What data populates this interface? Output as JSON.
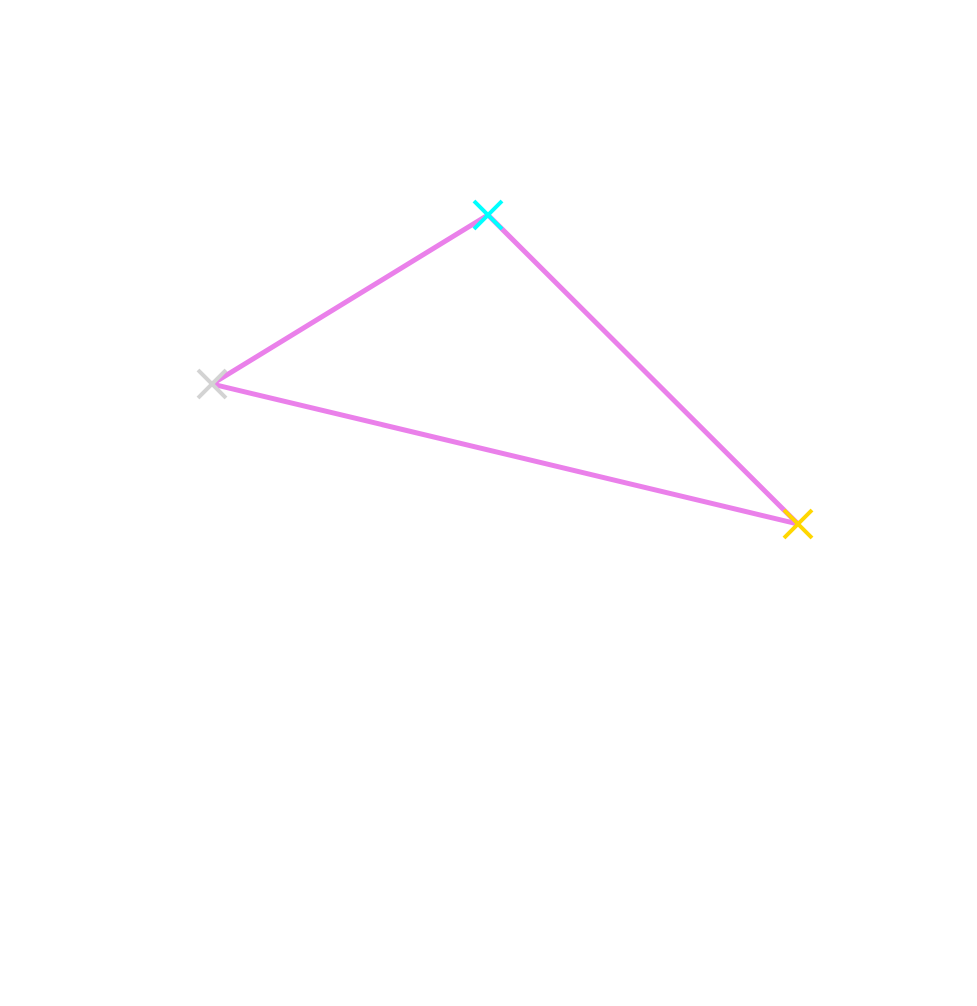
{
  "diagram": {
    "edge_color": "#ea80ea",
    "vertices": [
      {
        "id": "left",
        "color": "#d3d3d3",
        "label": ""
      },
      {
        "id": "top",
        "color": "#00ffff",
        "label": ""
      },
      {
        "id": "right",
        "color": "#ffd700",
        "label": ""
      }
    ],
    "edges": [
      {
        "from": "left",
        "to": "top"
      },
      {
        "from": "top",
        "to": "right"
      },
      {
        "from": "right",
        "to": "left"
      }
    ]
  }
}
